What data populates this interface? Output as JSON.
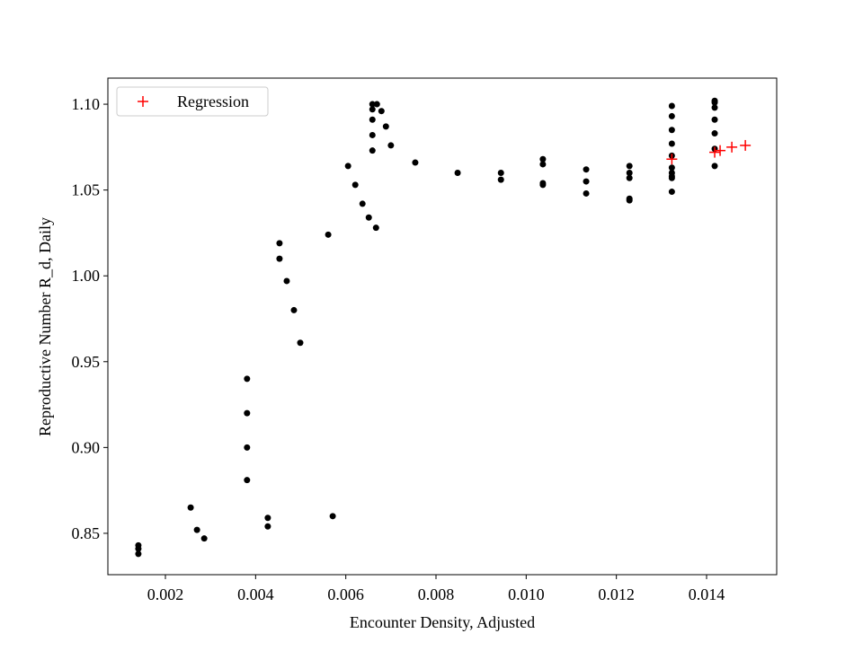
{
  "chart_data": {
    "type": "scatter",
    "x_label": "Encounter Density, Adjusted",
    "y_label": "Reproductive Number R_d, Daily",
    "xlim": [
      0.000724,
      0.015555
    ],
    "ylim": [
      0.8259,
      1.1152
    ],
    "xticks": [
      0.002,
      0.004,
      0.006,
      0.008,
      {
        "value": 0.01,
        "label": "0.010"
      },
      0.012,
      0.014
    ],
    "yticks": [
      0.85,
      {
        "value": 0.9,
        "label": "0.90"
      },
      0.95,
      {
        "value": 1.0,
        "label": "1.00"
      },
      1.05,
      {
        "value": 1.1,
        "label": "1.10"
      }
    ],
    "legend": "upper left",
    "series": [
      {
        "color": "#000000",
        "marker": "o",
        "x": [
          0.0014,
          0.0014,
          0.0014,
          0.00256,
          0.0027,
          0.00286,
          0.00381,
          0.00381,
          0.00381,
          0.00381,
          0.00427,
          0.00427,
          0.00453,
          0.00453,
          0.00469,
          0.00485,
          0.00499,
          0.00561,
          0.00571,
          0.00605,
          0.00621,
          0.00637,
          0.00651,
          0.00667,
          0.00659,
          0.00659,
          0.00659,
          0.00659,
          0.00659,
          0.00669,
          0.00679,
          0.00689,
          0.007,
          0.00754,
          0.00848,
          0.00944,
          0.00944,
          0.01037,
          0.01037,
          0.01037,
          0.01037,
          0.01133,
          0.01133,
          0.01133,
          0.01229,
          0.01229,
          0.01229,
          0.01229,
          0.01229,
          0.01323,
          0.01323,
          0.01323,
          0.01323,
          0.01323,
          0.01323,
          0.01323,
          0.01323,
          0.01323,
          0.01323,
          0.01418,
          0.01418,
          0.01418,
          0.01418,
          0.01418,
          0.01418,
          0.01418
        ],
        "values": [
          0.843,
          0.841,
          0.838,
          0.865,
          0.852,
          0.847,
          0.94,
          0.92,
          0.9,
          0.881,
          0.859,
          0.854,
          1.019,
          1.01,
          0.997,
          0.98,
          0.961,
          1.024,
          0.86,
          1.064,
          1.053,
          1.042,
          1.034,
          1.028,
          1.1,
          1.097,
          1.091,
          1.082,
          1.073,
          1.1,
          1.096,
          1.087,
          1.076,
          1.066,
          1.06,
          1.06,
          1.056,
          1.068,
          1.065,
          1.054,
          1.053,
          1.062,
          1.055,
          1.048,
          1.064,
          1.06,
          1.057,
          1.045,
          1.044,
          1.099,
          1.093,
          1.085,
          1.077,
          1.07,
          1.063,
          1.06,
          1.058,
          1.057,
          1.049,
          1.102,
          1.101,
          1.098,
          1.091,
          1.083,
          1.074,
          1.064
        ]
      },
      {
        "name": "Regression",
        "color": "#ff0000",
        "marker": "+",
        "x": [
          0.01323,
          0.01418,
          0.0143,
          0.01456,
          0.01486
        ],
        "values": [
          1.068,
          1.072,
          1.073,
          1.075,
          1.076
        ]
      }
    ]
  }
}
